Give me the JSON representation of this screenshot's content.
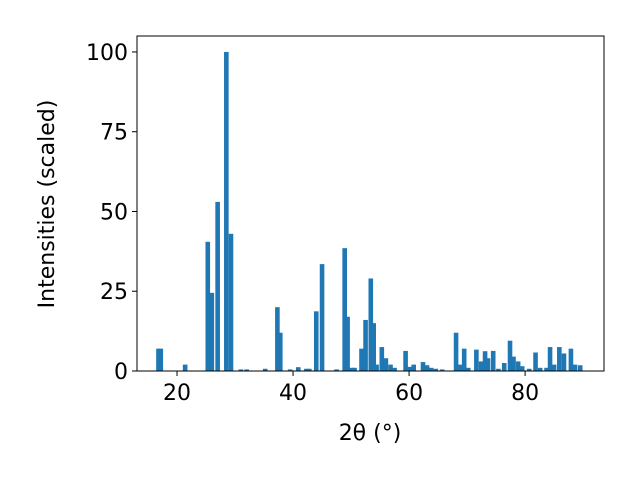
{
  "chart_data": {
    "type": "bar",
    "xlabel": "2θ (°)",
    "ylabel": "Intensities (scaled)",
    "color": "#1f77b4",
    "x": [
      16.8,
      17.2,
      21.4,
      25.3,
      26.0,
      27.0,
      28.5,
      29.3,
      31.0,
      32.0,
      35.2,
      37.3,
      37.8,
      39.5,
      40.9,
      42.3,
      42.8,
      44.0,
      45.0,
      47.5,
      48.9,
      49.4,
      50.1,
      50.6,
      51.8,
      52.5,
      53.4,
      53.9,
      54.4,
      55.3,
      56.0,
      56.8,
      57.5,
      59.4,
      60.1,
      60.8,
      62.4,
      63.1,
      63.8,
      64.6,
      65.7,
      68.1,
      68.8,
      69.5,
      70.2,
      71.6,
      72.4,
      73.1,
      73.6,
      74.5,
      75.4,
      76.4,
      77.4,
      78.0,
      78.8,
      79.5,
      80.7,
      81.8,
      82.6,
      83.7,
      84.3,
      85.0,
      85.9,
      86.7,
      87.9,
      88.6,
      89.5
    ],
    "values": [
      7,
      7,
      2,
      40.5,
      24.5,
      53,
      100,
      43,
      0.5,
      0.5,
      0.7,
      20,
      12,
      0.5,
      1.2,
      0.7,
      0.7,
      18.7,
      33.5,
      0.5,
      38.5,
      17,
      1,
      1,
      7,
      16,
      29,
      15,
      2,
      7.5,
      4,
      2,
      1,
      6.3,
      1.3,
      2,
      2.8,
      1.8,
      1,
      0.7,
      0.5,
      12,
      2,
      7,
      1,
      6.7,
      3,
      6.2,
      4,
      6.3,
      0.7,
      2.5,
      9.5,
      4.5,
      3,
      1.5,
      0.7,
      5.8,
      1,
      1,
      7.5,
      2,
      7.5,
      5.5,
      7,
      2,
      1.8
    ],
    "xlim": [
      13.1,
      93.6
    ],
    "ylim": [
      0,
      105
    ],
    "xticks": [
      20,
      40,
      60,
      80
    ],
    "yticks": [
      0,
      25,
      50,
      75,
      100
    ]
  }
}
